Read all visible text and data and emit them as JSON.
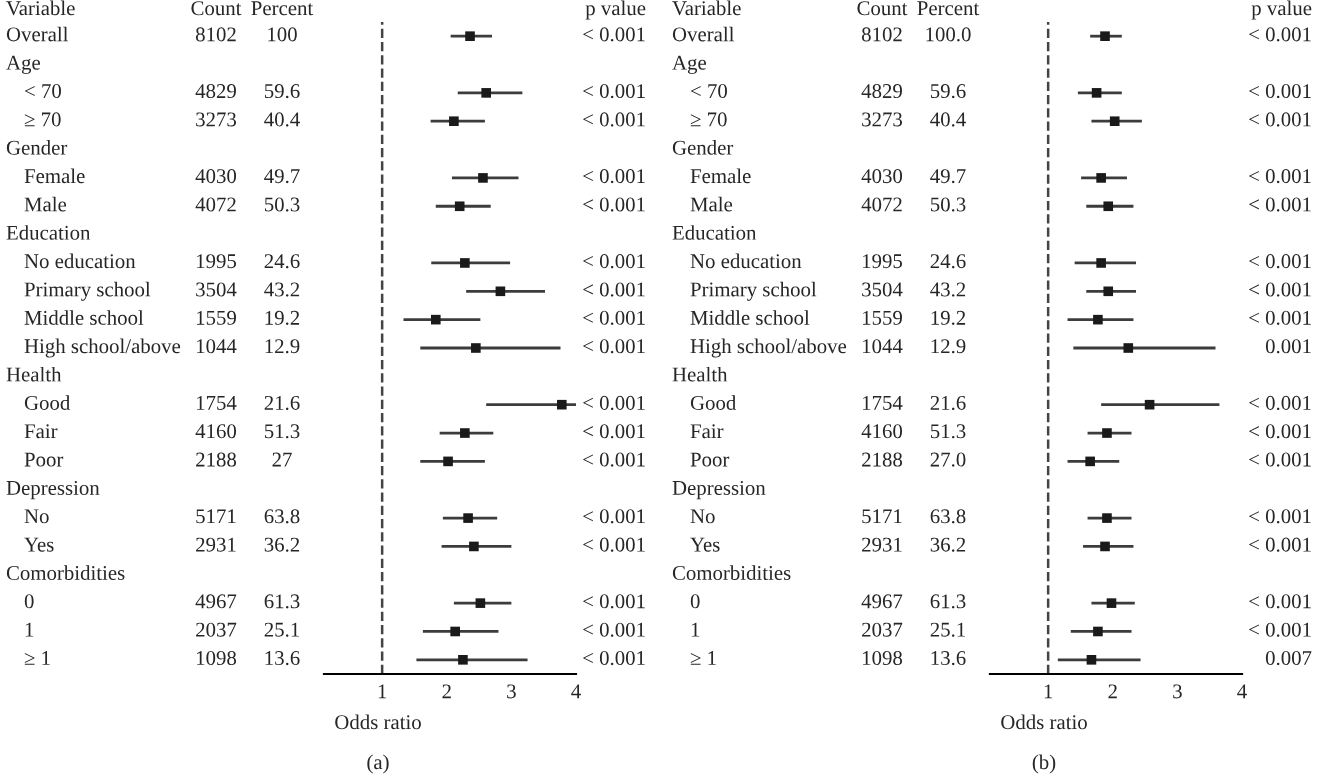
{
  "chart_data": [
    {
      "type": "scatter",
      "title": "(a)",
      "xlabel": "Odds ratio",
      "orientation": "horizontal",
      "marker": "square",
      "tick_labels": "x",
      "xlim": [
        0.1,
        4
      ],
      "xticks": [
        1,
        2,
        3,
        4
      ],
      "categories": [
        "Overall",
        "Age",
        "< 70",
        "≥ 70",
        "Gender",
        "Female",
        "Male",
        "Education",
        "No education",
        "Primary school",
        "Middle school",
        "High school/above",
        "Health",
        "Good",
        "Fair",
        "Poor",
        "Depression",
        "No",
        "Yes",
        "Comorbidities",
        "0",
        "1",
        "≥ 1"
      ],
      "series": [
        {
          "color": "#1a1a1a",
          "values": [
            2.36,
            null,
            2.61,
            2.11,
            null,
            2.56,
            2.2,
            null,
            2.28,
            2.83,
            1.83,
            2.45,
            null,
            3.78,
            2.28,
            2.02,
            null,
            2.33,
            2.42,
            null,
            2.52,
            2.13,
            2.25
          ],
          "errors": [
            [
              2.06,
              2.7
            ],
            null,
            [
              2.17,
              3.17
            ],
            [
              1.75,
              2.59
            ],
            null,
            [
              2.08,
              3.11
            ],
            [
              1.83,
              2.68
            ],
            null,
            [
              1.76,
              2.98
            ],
            [
              2.3,
              3.52
            ],
            [
              1.33,
              2.52
            ],
            [
              1.59,
              3.76
            ],
            null,
            [
              2.61,
              4
            ],
            [
              1.89,
              2.72
            ],
            [
              1.59,
              2.59
            ],
            null,
            [
              1.94,
              2.78
            ],
            [
              1.92,
              3.0
            ],
            null,
            [
              2.11,
              3.0
            ],
            [
              1.63,
              2.8
            ],
            [
              1.53,
              3.25
            ]
          ]
        }
      ],
      "ref_lines": [
        {
          "axis": "x",
          "value": 1,
          "line_style": "dashed",
          "color": "#444444"
        }
      ],
      "annotations": [
        "Variable",
        "Count",
        "Percent",
        "p value",
        "8102",
        "100",
        "< 0.001",
        "4829",
        "59.6",
        "< 0.001",
        "3273",
        "40.4",
        "< 0.001",
        "4030",
        "49.7",
        "< 0.001",
        "4072",
        "50.3",
        "< 0.001",
        "1995",
        "24.6",
        "< 0.001",
        "3504",
        "43.2",
        "< 0.001",
        "1559",
        "19.2",
        "< 0.001",
        "1044",
        "12.9",
        "< 0.001",
        "1754",
        "21.6",
        "< 0.001",
        "4160",
        "51.3",
        "< 0.001",
        "2188",
        "27",
        "< 0.001",
        "5171",
        "63.8",
        "< 0.001",
        "2931",
        "36.2",
        "< 0.001",
        "4967",
        "61.3",
        "< 0.001",
        "2037",
        "25.1",
        "< 0.001",
        "1098",
        "13.6",
        "< 0.001"
      ]
    },
    {
      "type": "scatter",
      "title": "(b)",
      "xlabel": "Odds ratio",
      "orientation": "horizontal",
      "marker": "square",
      "tick_labels": "x",
      "xlim": [
        0.1,
        4
      ],
      "xticks": [
        1,
        2,
        3,
        4
      ],
      "categories": [
        "Overall",
        "Age",
        "< 70",
        "≥ 70",
        "Gender",
        "Female",
        "Male",
        "Education",
        "No education",
        "Primary school",
        "Middle school",
        "High school/above",
        "Health",
        "Good",
        "Fair",
        "Poor",
        "Depression",
        "No",
        "Yes",
        "Comorbidities",
        "0",
        "1",
        "≥ 1"
      ],
      "series": [
        {
          "color": "#1a1a1a",
          "values": [
            1.88,
            null,
            1.75,
            2.03,
            null,
            1.82,
            1.93,
            null,
            1.82,
            1.93,
            1.77,
            2.24,
            null,
            2.57,
            1.91,
            1.65,
            null,
            1.91,
            1.88,
            null,
            1.98,
            1.77,
            1.67
          ],
          "errors": [
            [
              1.65,
              2.14
            ],
            null,
            [
              1.46,
              2.14
            ],
            [
              1.67,
              2.45
            ],
            null,
            [
              1.51,
              2.22
            ],
            [
              1.59,
              2.32
            ],
            null,
            [
              1.41,
              2.36
            ],
            [
              1.59,
              2.36
            ],
            [
              1.3,
              2.32
            ],
            [
              1.39,
              3.59
            ],
            null,
            [
              1.82,
              3.65
            ],
            [
              1.61,
              2.29
            ],
            [
              1.3,
              2.1
            ],
            null,
            [
              1.61,
              2.29
            ],
            [
              1.54,
              2.32
            ],
            null,
            [
              1.67,
              2.34
            ],
            [
              1.35,
              2.29
            ],
            [
              1.15,
              2.43
            ]
          ]
        }
      ],
      "ref_lines": [
        {
          "axis": "x",
          "value": 1,
          "line_style": "dashed",
          "color": "#444444"
        }
      ],
      "annotations": [
        "Variable",
        "Count",
        "Percent",
        "p value",
        "8102",
        "100.0",
        "< 0.001",
        "4829",
        "59.6",
        "< 0.001",
        "3273",
        "40.4",
        "< 0.001",
        "4030",
        "49.7",
        "< 0.001",
        "4072",
        "50.3",
        "< 0.001",
        "1995",
        "24.6",
        "< 0.001",
        "3504",
        "43.2",
        "< 0.001",
        "1559",
        "19.2",
        "< 0.001",
        "1044",
        "12.9",
        "0.001",
        "1754",
        "21.6",
        "< 0.001",
        "4160",
        "51.3",
        "< 0.001",
        "2188",
        "27.0",
        "< 0.001",
        "5171",
        "63.8",
        "< 0.001",
        "2931",
        "36.2",
        "< 0.001",
        "4967",
        "61.3",
        "< 0.001",
        "2037",
        "25.1",
        "< 0.001",
        "1098",
        "13.6",
        "0.007"
      ]
    }
  ]
}
